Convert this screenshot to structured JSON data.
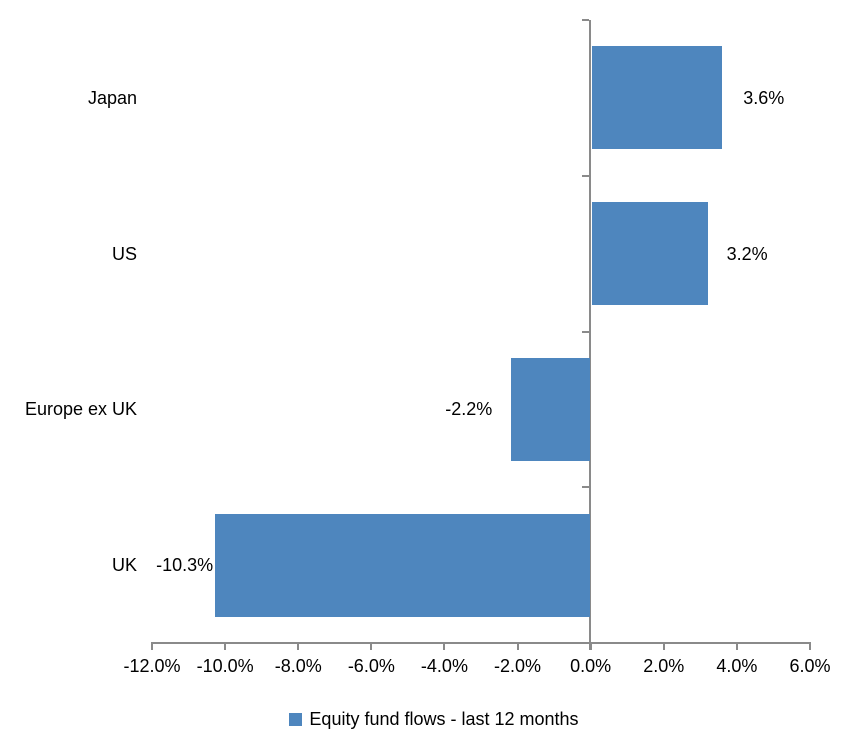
{
  "chart_data": {
    "type": "bar",
    "orientation": "horizontal",
    "title": "",
    "categories": [
      "Japan",
      "US",
      "Europe ex UK",
      "UK"
    ],
    "values": [
      3.6,
      3.2,
      -2.2,
      -10.3
    ],
    "value_labels": [
      "3.6%",
      "3.2%",
      "-2.2%",
      "-10.3%"
    ],
    "series_name": "Equity fund flows - last 12 months",
    "xlim": [
      -12,
      6
    ],
    "x_ticks": [
      -12,
      -10,
      -8,
      -6,
      -4,
      -2,
      0,
      2,
      4,
      6
    ],
    "x_tick_labels": [
      "-12.0%",
      "-10.0%",
      "-8.0%",
      "-6.0%",
      "-4.0%",
      "-2.0%",
      "0.0%",
      "2.0%",
      "4.0%",
      "6.0%"
    ],
    "grid": false,
    "legend_position": "bottom",
    "colors": {
      "bar": "#4E86BE",
      "axis": "#8A8A8A",
      "text": "#000000",
      "background": "#FFFFFF"
    }
  }
}
